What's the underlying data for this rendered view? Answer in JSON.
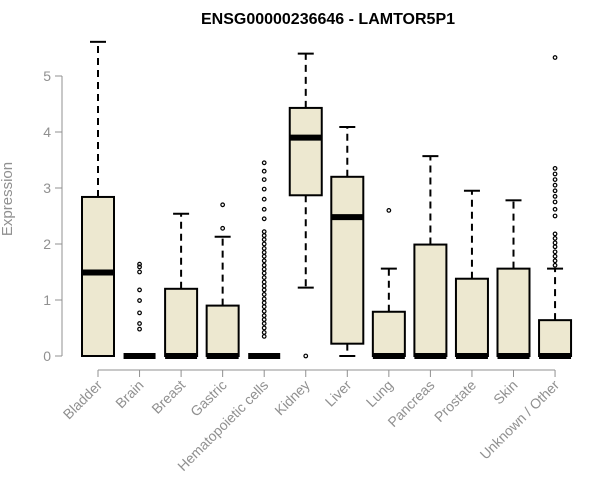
{
  "chart_data": {
    "type": "boxplot",
    "title": "ENSG00000236646 - LAMTOR5P1",
    "xlabel": "",
    "ylabel": "Expression",
    "ylim": [
      0,
      5.6
    ],
    "yticks": [
      0,
      1,
      2,
      3,
      4,
      5
    ],
    "grid": false,
    "colors": {
      "box_fill": "#ede8d0",
      "stroke": "#000000",
      "axis": "#909090"
    },
    "categories": [
      "Bladder",
      "Brain",
      "Breast",
      "Gastric",
      "Hematopoietic cells",
      "Kidney",
      "Liver",
      "Lung",
      "Pancreas",
      "Prostate",
      "Skin",
      "Unknown / Other"
    ],
    "boxes": [
      {
        "name": "Bladder",
        "whisker_low": 0,
        "q1": 0,
        "median": 1.49,
        "q3": 2.84,
        "whisker_high": 5.61,
        "outliers": []
      },
      {
        "name": "Brain",
        "whisker_low": 0,
        "q1": 0,
        "median": 0,
        "q3": 0,
        "whisker_high": 0,
        "outliers": [
          0.48,
          0.58,
          0.77,
          0.99,
          1.18,
          1.5,
          1.59,
          1.64
        ]
      },
      {
        "name": "Breast",
        "whisker_low": 0,
        "q1": 0,
        "median": 0,
        "q3": 1.2,
        "whisker_high": 2.54,
        "outliers": []
      },
      {
        "name": "Gastric",
        "whisker_low": 0,
        "q1": 0,
        "median": 0,
        "q3": 0.9,
        "whisker_high": 2.13,
        "outliers": [
          2.28,
          2.7
        ]
      },
      {
        "name": "Hematopoietic cells",
        "whisker_low": 0,
        "q1": 0,
        "median": 0,
        "q3": 0,
        "whisker_high": 0,
        "outliers": [
          0.35,
          0.42,
          0.5,
          0.58,
          0.65,
          0.72,
          0.8,
          0.88,
          0.95,
          1.02,
          1.1,
          1.18,
          1.25,
          1.32,
          1.4,
          1.48,
          1.55,
          1.62,
          1.7,
          1.78,
          1.85,
          1.92,
          2.0,
          2.08,
          2.15,
          2.22,
          2.45,
          2.62,
          2.8,
          2.98,
          3.15,
          3.3,
          3.45
        ]
      },
      {
        "name": "Kidney",
        "whisker_low": 1.22,
        "q1": 2.87,
        "median": 3.9,
        "q3": 4.43,
        "whisker_high": 5.4,
        "outliers": [
          0
        ]
      },
      {
        "name": "Liver",
        "whisker_low": 0,
        "q1": 0.22,
        "median": 2.48,
        "q3": 3.2,
        "whisker_high": 4.09,
        "outliers": []
      },
      {
        "name": "Lung",
        "whisker_low": 0,
        "q1": 0,
        "median": 0,
        "q3": 0.79,
        "whisker_high": 1.56,
        "outliers": [
          2.6
        ]
      },
      {
        "name": "Pancreas",
        "whisker_low": 0,
        "q1": 0,
        "median": 0,
        "q3": 1.99,
        "whisker_high": 3.57,
        "outliers": []
      },
      {
        "name": "Prostate",
        "whisker_low": 0,
        "q1": 0,
        "median": 0,
        "q3": 1.38,
        "whisker_high": 2.95,
        "outliers": []
      },
      {
        "name": "Skin",
        "whisker_low": 0,
        "q1": 0,
        "median": 0,
        "q3": 1.56,
        "whisker_high": 2.78,
        "outliers": []
      },
      {
        "name": "Unknown / Other",
        "whisker_low": 0,
        "q1": 0,
        "median": 0,
        "q3": 0.64,
        "whisker_high": 1.56,
        "outliers": [
          1.62,
          1.7,
          1.78,
          1.86,
          1.95,
          2.02,
          2.1,
          2.18,
          2.5,
          2.62,
          2.75,
          2.85,
          2.95,
          3.05,
          3.15,
          3.25,
          3.35,
          5.33
        ]
      }
    ]
  }
}
